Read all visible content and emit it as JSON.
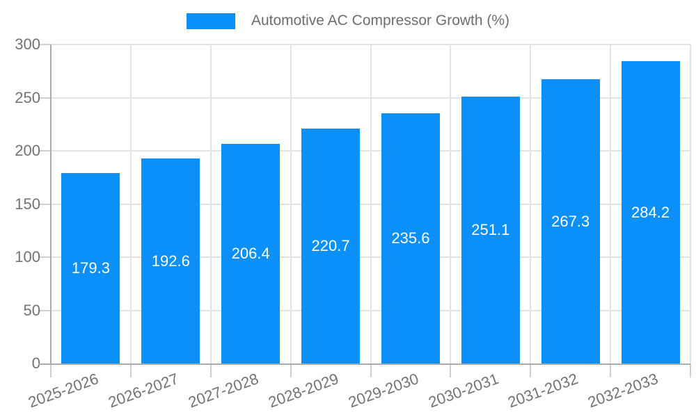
{
  "chart_data": {
    "type": "bar",
    "title": "Automotive AC Compressor Growth (%)",
    "categories": [
      "2025-2026",
      "2026-2027",
      "2027-2028",
      "2028-2029",
      "2029-2030",
      "2030-2031",
      "2031-2032",
      "2032-2033"
    ],
    "values": [
      179.3,
      192.6,
      206.4,
      220.7,
      235.6,
      251.1,
      267.3,
      284.2
    ],
    "xlabel": "",
    "ylabel": "",
    "ylim": [
      0,
      300
    ],
    "yticks": [
      0,
      50,
      100,
      150,
      200,
      250,
      300
    ],
    "grid": true,
    "legend_position": "top",
    "value_label_position": "inside-center",
    "colors": {
      "bar": "#0a90f8",
      "value_label": "#ffffff",
      "legend_text": "#6e6e6e",
      "axis_text": "#737373",
      "grid_line": "#e3e3e3",
      "tick_line": "#cfcfcf",
      "axis_line": "#ababab",
      "background": "#ffffff"
    }
  }
}
